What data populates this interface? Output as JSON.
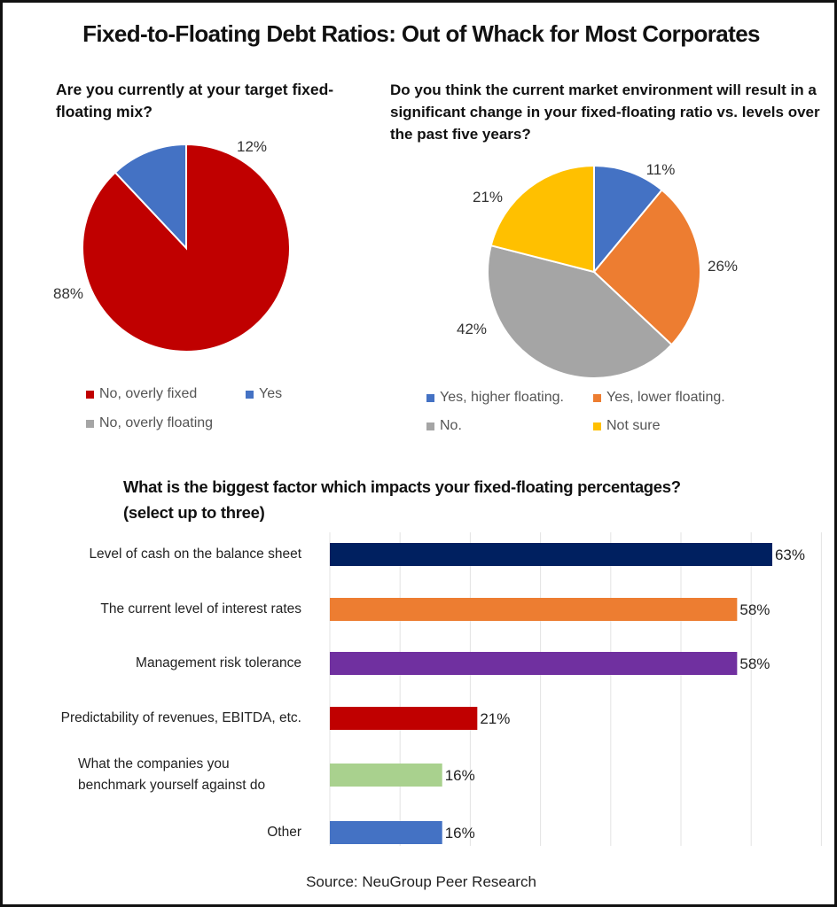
{
  "title": "Fixed-to-Floating Debt Ratios: Out of Whack for Most Corporates",
  "source": "Source: NeuGroup Peer Research",
  "chart_data": [
    {
      "type": "pie",
      "title": "Are you currently at your target fixed-floating mix?",
      "categories": [
        "No, overly fixed",
        "Yes",
        "No, overly floating"
      ],
      "values": [
        88,
        12,
        0
      ],
      "data_labels": [
        "88%",
        "12%",
        ""
      ],
      "colors": [
        "#C00000",
        "#4472C4",
        "#A5A5A5"
      ],
      "legend": [
        "No, overly fixed",
        "Yes",
        "No, overly floating"
      ],
      "legend_position": "bottom"
    },
    {
      "type": "pie",
      "title": "Do you think the current market environment will result in a significant change in your fixed-floating ratio vs. levels over the past five years?",
      "categories": [
        "Yes, higher floating.",
        "Yes, lower floating.",
        "No.",
        "Not sure"
      ],
      "values": [
        11,
        26,
        42,
        21
      ],
      "data_labels": [
        "11%",
        "26%",
        "42%",
        "21%"
      ],
      "colors": [
        "#4472C4",
        "#ED7D31",
        "#A5A5A5",
        "#FFC000"
      ],
      "legend": [
        "Yes, higher floating.",
        "Yes, lower floating.",
        "No.",
        "Not sure"
      ],
      "legend_position": "bottom"
    },
    {
      "type": "bar",
      "orientation": "horizontal",
      "title": "What is the biggest factor which impacts your fixed-floating percentages? (select up to three)",
      "categories": [
        "Level of cash on the balance sheet",
        "The current level of interest rates",
        "Management risk tolerance",
        "Predictability of revenues, EBITDA, etc.",
        [
          "What the companies you",
          "benchmark yourself against do"
        ],
        "Other"
      ],
      "values": [
        63,
        58,
        58,
        21,
        16,
        16
      ],
      "data_labels": [
        "63%",
        "58%",
        "58%",
        "21%",
        "16%",
        "16%"
      ],
      "colors": [
        "#002060",
        "#ED7D31",
        "#7030A0",
        "#C00000",
        "#A9D18E",
        "#4472C4"
      ],
      "xlim": [
        0,
        70
      ],
      "grid": true,
      "xlabel": "",
      "ylabel": ""
    }
  ]
}
